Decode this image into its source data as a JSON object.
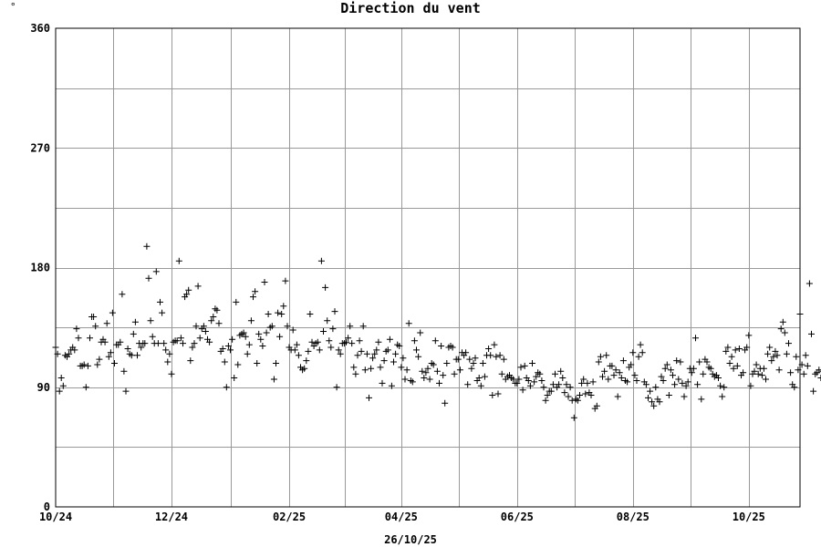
{
  "chart_data": {
    "type": "scatter",
    "title": "Direction du vent",
    "corner_symbol": "°",
    "date_label": "26/10/25",
    "ylim": [
      0,
      360
    ],
    "y_ticks": [
      0,
      90,
      180,
      270,
      360
    ],
    "xlim": [
      "2024-10-24",
      "2025-11-20"
    ],
    "x_ticks": [
      {
        "date": "2024-10-24",
        "label": "10/24"
      },
      {
        "date": "2024-12-24",
        "label": "12/24"
      },
      {
        "date": "2025-02-24",
        "label": "02/25"
      },
      {
        "date": "2025-04-24",
        "label": "04/25"
      },
      {
        "date": "2025-06-24",
        "label": "06/25"
      },
      {
        "date": "2025-08-24",
        "label": "08/25"
      },
      {
        "date": "2025-10-24",
        "label": "10/25"
      }
    ],
    "grid": true,
    "marker": "+",
    "marker_color": "#000000",
    "grid_color": "#999999",
    "series": [
      {
        "x_start": "2024-10-24",
        "y": [
          120,
          115,
          87,
          97,
          91,
          114,
          113,
          115,
          118,
          120,
          118,
          134,
          127,
          106,
          106,
          107,
          90,
          106,
          127,
          143,
          143,
          136,
          107,
          111,
          124,
          126,
          124,
          138,
          113,
          116,
          146,
          108,
          122,
          122,
          124,
          160,
          102,
          87,
          119,
          115,
          114,
          130,
          139,
          114,
          123,
          120,
          123,
          123,
          196,
          172,
          140,
          128,
          123,
          177,
          123,
          154,
          146,
          123,
          118,
          109,
          115,
          100,
          124,
          125,
          125,
          185,
          127,
          123,
          158,
          160,
          163,
          110,
          120,
          123,
          136,
          166,
          127,
          134,
          136,
          132,
          126,
          124,
          140,
          143,
          149,
          148,
          138,
          117,
          119,
          109,
          90,
          121,
          118,
          126,
          97,
          154,
          107,
          129,
          130,
          131,
          128,
          115,
          122,
          140,
          158,
          162,
          108,
          130,
          126,
          121,
          169,
          131,
          145,
          135,
          136,
          96,
          108,
          146,
          128,
          145,
          151,
          170,
          136,
          120,
          118,
          133,
          118,
          122,
          114,
          105,
          103,
          104,
          110,
          117,
          145,
          124,
          121,
          123,
          124,
          118,
          185,
          132,
          165,
          140,
          125,
          120,
          134,
          147,
          90,
          118,
          115,
          123,
          123,
          124,
          127,
          136,
          123,
          105,
          100,
          114,
          125,
          117,
          136,
          103,
          115,
          82,
          104,
          112,
          115,
          118,
          124,
          105,
          93,
          110,
          117,
          118,
          126,
          91,
          109,
          115,
          122,
          121,
          105,
          112,
          96,
          103,
          138,
          95,
          94,
          125,
          118,
          113,
          131,
          102,
          97,
          101,
          104,
          96,
          108,
          107,
          125,
          102,
          93,
          121,
          99,
          78,
          108,
          120,
          121,
          120,
          100,
          111,
          111,
          103,
          116,
          114,
          116,
          92,
          111,
          104,
          108,
          112,
          95,
          97,
          91,
          108,
          98,
          114,
          119,
          114,
          84,
          122,
          113,
          85,
          114,
          100,
          111,
          96,
          98,
          99,
          97,
          96,
          93,
          93,
          96,
          105,
          88,
          106,
          97,
          95,
          91,
          108,
          94,
          98,
          101,
          100,
          95,
          90,
          80,
          84,
          87,
          87,
          92,
          100,
          90,
          92,
          102,
          97,
          86,
          92,
          83,
          90,
          80,
          67,
          81,
          80,
          84,
          93,
          96,
          85,
          93,
          86,
          84,
          94,
          74,
          76,
          109,
          113,
          98,
          102,
          114,
          96,
          106,
          106,
          99,
          103,
          83,
          101,
          97,
          110,
          95,
          94,
          105,
          107,
          116,
          99,
          95,
          113,
          122,
          116,
          94,
          92,
          82,
          87,
          79,
          76,
          90,
          81,
          79,
          98,
          95,
          104,
          107,
          84,
          103,
          99,
          92,
          110,
          96,
          109,
          93,
          83,
          91,
          94,
          104,
          101,
          104,
          127,
          92,
          109,
          81,
          100,
          111,
          109,
          105,
          104,
          100,
          98,
          99,
          97,
          91,
          83,
          90,
          117,
          120,
          108,
          113,
          104,
          118,
          106,
          119,
          99,
          101,
          118,
          120,
          129,
          91,
          100,
          102,
          107,
          100,
          104,
          99,
          104,
          96,
          115,
          120,
          110,
          113,
          117,
          114,
          103,
          134,
          139,
          131,
          115,
          123,
          101,
          92,
          90,
          113,
          103,
          145,
          107,
          100,
          114,
          106,
          168,
          130,
          87,
          100,
          101,
          103,
          97,
          102,
          111,
          124,
          130,
          146,
          98,
          109,
          100,
          107,
          141,
          140,
          132,
          118,
          83,
          96,
          100,
          126,
          112,
          103,
          123,
          103,
          140,
          119,
          115,
          104,
          121,
          128,
          135,
          108,
          126,
          137,
          100,
          104,
          117,
          123,
          138,
          138,
          101,
          103,
          105,
          106,
          88,
          100,
          108,
          111,
          102,
          109,
          107,
          101,
          106,
          102,
          105,
          97,
          103,
          109,
          117,
          129,
          109,
          109,
          99,
          100,
          124,
          102,
          105,
          109
        ]
      }
    ]
  }
}
